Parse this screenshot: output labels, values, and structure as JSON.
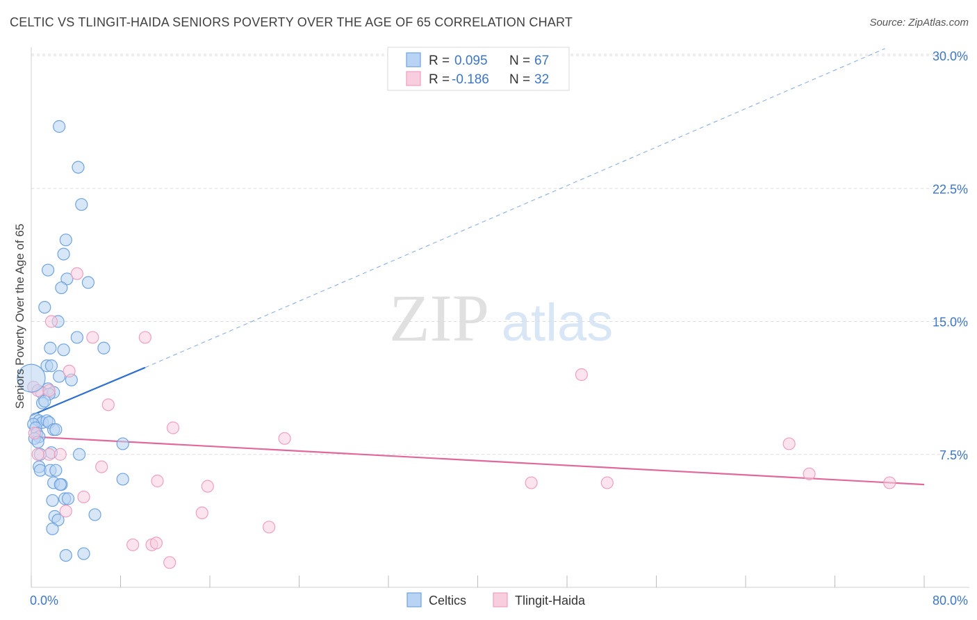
{
  "title": "CELTIC VS TLINGIT-HAIDA SENIORS POVERTY OVER THE AGE OF 65 CORRELATION CHART",
  "source": "Source: ZipAtlas.com",
  "watermark": {
    "zip": "ZIP",
    "atlas": "atlas"
  },
  "chart_data": {
    "type": "scatter",
    "ylabel": "Seniors Poverty Over the Age of 65",
    "xlabel": "",
    "xlim": [
      0,
      80
    ],
    "ylim": [
      0,
      30.8
    ],
    "x_tick_labels": [
      {
        "value": 0,
        "label": "0.0%"
      },
      {
        "value": 80,
        "label": "80.0%"
      }
    ],
    "x_minor_ticks": [
      0,
      8,
      16,
      24,
      32,
      40,
      48,
      56,
      64,
      72,
      80
    ],
    "y_ticks": [
      {
        "value": 7.5,
        "label": "7.5%"
      },
      {
        "value": 15.0,
        "label": "15.0%"
      },
      {
        "value": 22.5,
        "label": "22.5%"
      },
      {
        "value": 30.0,
        "label": "30.0%"
      }
    ],
    "grid": "horizontal dashed",
    "legend": {
      "position": "top-center",
      "entries": [
        {
          "r_label": "R =",
          "r_value": "0.095",
          "n_label": "N =",
          "n_value": "67"
        },
        {
          "r_label": "R =",
          "r_value": "-0.186",
          "n_label": "N =",
          "n_value": "32"
        }
      ]
    },
    "series": [
      {
        "name": "Celtics",
        "color": "#6fa3e0",
        "fill": "#b8d3f3",
        "trend": {
          "x0": 0,
          "y0": 9.7,
          "x1": 10.2,
          "y1": 12.4,
          "dashed_to_x": 76.5,
          "dashed_to_y": 30.4,
          "color": "#2e6fcf"
        },
        "points": [
          [
            2.5,
            26.0
          ],
          [
            4.2,
            23.7
          ],
          [
            4.5,
            21.6
          ],
          [
            3.1,
            19.6
          ],
          [
            2.9,
            18.8
          ],
          [
            1.5,
            17.9
          ],
          [
            3.2,
            17.4
          ],
          [
            5.1,
            17.2
          ],
          [
            2.7,
            16.9
          ],
          [
            1.2,
            15.8
          ],
          [
            2.4,
            15.0
          ],
          [
            4.1,
            14.1
          ],
          [
            1.7,
            13.5
          ],
          [
            2.9,
            13.4
          ],
          [
            6.5,
            13.5
          ],
          [
            1.4,
            12.5
          ],
          [
            1.8,
            12.5
          ],
          [
            2.5,
            11.9
          ],
          [
            3.6,
            11.7
          ],
          [
            1.5,
            11.2
          ],
          [
            2.0,
            11.0
          ],
          [
            0.9,
            11.0
          ],
          [
            1.6,
            10.9
          ],
          [
            1.0,
            10.4
          ],
          [
            1.2,
            10.5
          ],
          [
            0.4,
            9.5
          ],
          [
            0.7,
            9.4
          ],
          [
            1.0,
            9.3
          ],
          [
            1.4,
            9.4
          ],
          [
            1.6,
            9.3
          ],
          [
            0.2,
            9.2
          ],
          [
            0.4,
            9.0
          ],
          [
            2.0,
            8.9
          ],
          [
            2.2,
            8.9
          ],
          [
            0.5,
            8.7
          ],
          [
            0.7,
            8.5
          ],
          [
            0.3,
            8.4
          ],
          [
            0.6,
            8.2
          ],
          [
            8.2,
            8.1
          ],
          [
            1.8,
            7.6
          ],
          [
            4.3,
            7.5
          ],
          [
            0.8,
            7.5
          ],
          [
            0.7,
            6.8
          ],
          [
            0.8,
            6.6
          ],
          [
            1.7,
            6.6
          ],
          [
            2.2,
            6.6
          ],
          [
            2.0,
            5.9
          ],
          [
            2.7,
            5.8
          ],
          [
            2.6,
            5.8
          ],
          [
            8.2,
            6.1
          ],
          [
            1.9,
            4.9
          ],
          [
            3.0,
            5.0
          ],
          [
            3.3,
            5.0
          ],
          [
            5.7,
            4.1
          ],
          [
            2.1,
            4.0
          ],
          [
            2.4,
            3.8
          ],
          [
            1.9,
            3.3
          ],
          [
            3.1,
            1.8
          ],
          [
            4.7,
            1.9
          ]
        ]
      },
      {
        "name": "Tlingit-Haida",
        "color": "#ef9fbe",
        "fill": "#f8cedf",
        "trend": {
          "x0": 0,
          "y0": 8.5,
          "x1": 80,
          "y1": 5.8,
          "color": "#e0689a"
        },
        "points": [
          [
            4.1,
            17.7
          ],
          [
            1.8,
            15.0
          ],
          [
            5.5,
            14.1
          ],
          [
            10.2,
            14.1
          ],
          [
            3.4,
            12.2
          ],
          [
            0.2,
            11.3
          ],
          [
            0.6,
            11.1
          ],
          [
            1.6,
            11.1
          ],
          [
            6.9,
            10.3
          ],
          [
            12.7,
            9.0
          ],
          [
            0.3,
            8.7
          ],
          [
            22.7,
            8.4
          ],
          [
            1.6,
            7.5
          ],
          [
            2.6,
            7.5
          ],
          [
            0.6,
            7.5
          ],
          [
            6.3,
            6.8
          ],
          [
            11.3,
            6.0
          ],
          [
            15.8,
            5.7
          ],
          [
            4.7,
            5.1
          ],
          [
            3.1,
            4.3
          ],
          [
            15.3,
            4.2
          ],
          [
            21.3,
            3.4
          ],
          [
            9.1,
            2.4
          ],
          [
            10.8,
            2.4
          ],
          [
            11.2,
            2.5
          ],
          [
            12.4,
            1.4
          ],
          [
            49.3,
            12.0
          ],
          [
            67.9,
            8.1
          ],
          [
            44.8,
            5.9
          ],
          [
            51.6,
            5.9
          ],
          [
            69.7,
            6.4
          ],
          [
            76.9,
            5.9
          ]
        ]
      }
    ],
    "large_point": {
      "series": "Celtics",
      "x": 0.0,
      "y": 11.8
    }
  }
}
